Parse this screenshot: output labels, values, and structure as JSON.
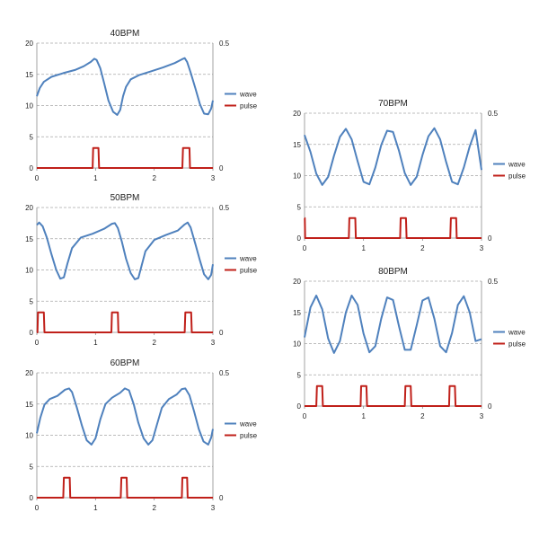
{
  "figure": {
    "colors": {
      "wave": "#4f81bd",
      "pulse": "#c0201a",
      "grid": "#a6a6a6",
      "axis": "#8c8c8c",
      "text": "#222222"
    }
  },
  "chart_data": [
    {
      "id": "bpm40",
      "type": "line",
      "title": "40BPM",
      "xlabel": "",
      "ylabel": "",
      "y2label": "",
      "xlim": [
        0,
        3
      ],
      "ylim": [
        0,
        20
      ],
      "y2lim": [
        0,
        0.5
      ],
      "xticks": [
        "0",
        "1",
        "2",
        "3"
      ],
      "yticks": [
        "0",
        "5",
        "10",
        "15",
        "20"
      ],
      "y2ticks": [
        "0",
        "0.5"
      ],
      "grid": true,
      "legend": "right",
      "series": [
        {
          "name": "wave",
          "axis": "left",
          "color": "#4f81bd",
          "x": [
            0,
            0.05,
            0.12,
            0.25,
            0.45,
            0.65,
            0.8,
            0.92,
            0.98,
            1.02,
            1.08,
            1.15,
            1.22,
            1.3,
            1.37,
            1.42,
            1.47,
            1.52,
            1.6,
            1.75,
            1.95,
            2.15,
            2.35,
            2.47,
            2.52,
            2.56,
            2.62,
            2.7,
            2.78,
            2.85,
            2.92,
            2.97,
            3.0
          ],
          "y": [
            11.5,
            12.8,
            13.8,
            14.6,
            15.2,
            15.7,
            16.3,
            17.0,
            17.5,
            17.3,
            16.0,
            13.5,
            10.8,
            9.0,
            8.5,
            9.3,
            11.5,
            13.0,
            14.2,
            14.9,
            15.5,
            16.1,
            16.8,
            17.4,
            17.6,
            17.0,
            15.3,
            12.8,
            10.2,
            8.7,
            8.6,
            9.5,
            10.8
          ]
        },
        {
          "name": "pulse",
          "axis": "right",
          "color": "#c0201a",
          "x": [
            0,
            0.95,
            0.96,
            1.05,
            1.06,
            2.48,
            2.49,
            2.6,
            2.61,
            3.0
          ],
          "y": [
            0,
            0,
            0.08,
            0.08,
            0,
            0,
            0.08,
            0.08,
            0,
            0
          ]
        }
      ]
    },
    {
      "id": "bpm50",
      "type": "line",
      "title": "50BPM",
      "xlabel": "",
      "ylabel": "",
      "y2label": "",
      "xlim": [
        0,
        3
      ],
      "ylim": [
        0,
        20
      ],
      "y2lim": [
        0,
        0.5
      ],
      "xticks": [
        "0",
        "1",
        "2",
        "3"
      ],
      "yticks": [
        "0",
        "5",
        "10",
        "15",
        "20"
      ],
      "y2ticks": [
        "0",
        "0.5"
      ],
      "grid": true,
      "legend": "right",
      "series": [
        {
          "name": "wave",
          "axis": "left",
          "color": "#4f81bd",
          "x": [
            0,
            0.04,
            0.1,
            0.17,
            0.25,
            0.33,
            0.4,
            0.46,
            0.52,
            0.6,
            0.75,
            0.95,
            1.15,
            1.28,
            1.33,
            1.38,
            1.45,
            1.52,
            1.6,
            1.67,
            1.73,
            1.78,
            1.85,
            2.0,
            2.2,
            2.4,
            2.52,
            2.57,
            2.62,
            2.7,
            2.78,
            2.85,
            2.92,
            2.97,
            3.0
          ],
          "y": [
            17.2,
            17.6,
            17.0,
            15.2,
            12.5,
            10.0,
            8.6,
            8.8,
            11.0,
            13.5,
            15.2,
            15.8,
            16.6,
            17.4,
            17.5,
            16.7,
            14.5,
            11.8,
            9.5,
            8.5,
            8.7,
            10.5,
            13.0,
            14.8,
            15.6,
            16.3,
            17.3,
            17.6,
            16.8,
            14.2,
            11.5,
            9.3,
            8.5,
            9.2,
            10.9
          ]
        },
        {
          "name": "pulse",
          "axis": "right",
          "color": "#c0201a",
          "x": [
            0,
            0.01,
            0.02,
            0.12,
            0.13,
            1.27,
            1.28,
            1.38,
            1.39,
            2.52,
            2.53,
            2.63,
            2.64,
            3.0
          ],
          "y": [
            0,
            0,
            0.08,
            0.08,
            0,
            0,
            0.08,
            0.08,
            0,
            0,
            0.08,
            0.08,
            0,
            0
          ]
        }
      ]
    },
    {
      "id": "bpm60",
      "type": "line",
      "title": "60BPM",
      "xlabel": "",
      "ylabel": "",
      "y2label": "",
      "xlim": [
        0,
        3
      ],
      "ylim": [
        0,
        20
      ],
      "y2lim": [
        0,
        0.5
      ],
      "xticks": [
        "0",
        "1",
        "2",
        "3"
      ],
      "yticks": [
        "0",
        "5",
        "10",
        "15",
        "20"
      ],
      "y2ticks": [
        "0",
        "0.5"
      ],
      "grid": true,
      "legend": "right",
      "series": [
        {
          "name": "wave",
          "axis": "left",
          "color": "#4f81bd",
          "x": [
            0,
            0.06,
            0.13,
            0.22,
            0.35,
            0.48,
            0.55,
            0.6,
            0.68,
            0.77,
            0.85,
            0.93,
            1.0,
            1.08,
            1.17,
            1.28,
            1.42,
            1.5,
            1.57,
            1.65,
            1.73,
            1.82,
            1.9,
            1.97,
            2.05,
            2.13,
            2.25,
            2.38,
            2.47,
            2.53,
            2.6,
            2.68,
            2.76,
            2.84,
            2.92,
            2.97,
            3.0
          ],
          "y": [
            10.3,
            12.8,
            14.9,
            15.8,
            16.3,
            17.3,
            17.5,
            16.9,
            14.5,
            11.5,
            9.2,
            8.5,
            9.5,
            12.5,
            15.0,
            16.0,
            16.8,
            17.5,
            17.2,
            15.0,
            12.0,
            9.5,
            8.5,
            9.2,
            11.8,
            14.4,
            15.8,
            16.5,
            17.4,
            17.5,
            16.4,
            13.8,
            11.0,
            9.0,
            8.5,
            9.6,
            11.0
          ]
        },
        {
          "name": "pulse",
          "axis": "right",
          "color": "#c0201a",
          "x": [
            0,
            0.45,
            0.46,
            0.56,
            0.57,
            1.43,
            1.44,
            1.53,
            1.54,
            2.47,
            2.48,
            2.56,
            2.57,
            3.0
          ],
          "y": [
            0,
            0,
            0.08,
            0.08,
            0,
            0,
            0.08,
            0.08,
            0,
            0,
            0.08,
            0.08,
            0,
            0
          ]
        }
      ]
    },
    {
      "id": "bpm70",
      "type": "line",
      "title": "70BPM",
      "xlabel": "",
      "ylabel": "",
      "y2label": "",
      "xlim": [
        0,
        3
      ],
      "ylim": [
        0,
        20
      ],
      "y2lim": [
        0,
        0.5
      ],
      "xticks": [
        "0",
        "1",
        "2",
        "3"
      ],
      "yticks": [
        "0",
        "5",
        "10",
        "15",
        "20"
      ],
      "y2ticks": [
        "0",
        "0.5"
      ],
      "grid": true,
      "legend": "right",
      "series": [
        {
          "name": "wave",
          "axis": "left",
          "color": "#4f81bd",
          "x": [
            0,
            0.1,
            0.2,
            0.3,
            0.4,
            0.5,
            0.6,
            0.7,
            0.8,
            0.9,
            1.0,
            1.1,
            1.2,
            1.3,
            1.4,
            1.5,
            1.6,
            1.7,
            1.8,
            1.9,
            2.0,
            2.1,
            2.2,
            2.3,
            2.4,
            2.5,
            2.6,
            2.7,
            2.8,
            2.9,
            3.0
          ],
          "y": [
            16.5,
            13.8,
            10.3,
            8.5,
            9.8,
            13.2,
            16.2,
            17.5,
            15.8,
            12.3,
            9.0,
            8.6,
            11.3,
            14.9,
            17.2,
            17.0,
            14.0,
            10.4,
            8.5,
            9.8,
            13.3,
            16.3,
            17.6,
            15.8,
            12.2,
            9.0,
            8.6,
            11.3,
            14.7,
            17.3,
            10.9
          ]
        },
        {
          "name": "pulse",
          "axis": "right",
          "color": "#c0201a",
          "x": [
            0,
            0.005,
            0.01,
            0.75,
            0.76,
            0.86,
            0.87,
            1.62,
            1.63,
            1.72,
            1.73,
            2.47,
            2.48,
            2.57,
            2.58,
            3.0
          ],
          "y": [
            0.08,
            0.08,
            0,
            0,
            0.08,
            0.08,
            0,
            0,
            0.08,
            0.08,
            0,
            0,
            0.08,
            0.08,
            0,
            0
          ]
        }
      ]
    },
    {
      "id": "bpm80",
      "type": "line",
      "title": "80BPM",
      "xlabel": "",
      "ylabel": "",
      "y2label": "",
      "xlim": [
        0,
        3
      ],
      "ylim": [
        0,
        20
      ],
      "y2lim": [
        0,
        0.5
      ],
      "xticks": [
        "0",
        "1",
        "2",
        "3"
      ],
      "yticks": [
        "0",
        "5",
        "10",
        "15",
        "20"
      ],
      "y2ticks": [
        "0",
        "0.5"
      ],
      "grid": true,
      "legend": "right",
      "series": [
        {
          "name": "wave",
          "axis": "left",
          "color": "#4f81bd",
          "x": [
            0,
            0.1,
            0.2,
            0.3,
            0.4,
            0.5,
            0.6,
            0.7,
            0.8,
            0.9,
            1.0,
            1.1,
            1.2,
            1.3,
            1.4,
            1.5,
            1.6,
            1.7,
            1.8,
            1.9,
            2.0,
            2.1,
            2.2,
            2.3,
            2.4,
            2.5,
            2.6,
            2.7,
            2.8,
            2.9,
            3.0
          ],
          "y": [
            11.0,
            15.8,
            17.7,
            15.5,
            10.8,
            8.5,
            10.4,
            15.0,
            17.7,
            16.2,
            11.6,
            8.6,
            9.6,
            14.0,
            17.4,
            17.0,
            12.8,
            9.0,
            9.0,
            12.9,
            16.9,
            17.4,
            14.0,
            9.6,
            8.6,
            11.7,
            16.2,
            17.6,
            15.0,
            10.4,
            10.7
          ]
        },
        {
          "name": "pulse",
          "axis": "right",
          "color": "#c0201a",
          "x": [
            0,
            0.2,
            0.21,
            0.3,
            0.31,
            0.95,
            0.96,
            1.05,
            1.06,
            1.7,
            1.71,
            1.8,
            1.81,
            2.45,
            2.46,
            2.55,
            2.56,
            3.0
          ],
          "y": [
            0,
            0,
            0.08,
            0.08,
            0,
            0,
            0.08,
            0.08,
            0,
            0,
            0.08,
            0.08,
            0,
            0,
            0.08,
            0.08,
            0,
            0
          ]
        }
      ]
    }
  ]
}
